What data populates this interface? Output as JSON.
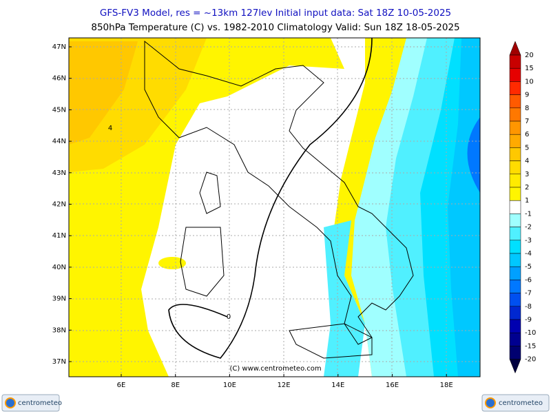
{
  "header": {
    "line1": "GFS-FV3 Model, res = ~13km 127lev    Initial input data: Sat 18Z 10-05-2025",
    "line2": "850hPa Temperature (C) vs. 1982-2010 Climatology  Valid: Sun 18Z 18-05-2025"
  },
  "map": {
    "lat_labels": [
      "47N",
      "46N",
      "45N",
      "44N",
      "43N",
      "42N",
      "41N",
      "40N",
      "39N",
      "38N",
      "37N"
    ],
    "lon_labels": [
      "6E",
      "8E",
      "10E",
      "12E",
      "14E",
      "16E",
      "18E"
    ],
    "contour_labels": [
      "4",
      "0"
    ],
    "copyright": "(C) www.centrometeo.com"
  },
  "colorbar": {
    "labels": [
      20,
      15,
      10,
      9,
      8,
      7,
      6,
      5,
      4,
      3,
      2,
      1,
      -1,
      -2,
      -3,
      -4,
      -5,
      -6,
      -7,
      -8,
      -9,
      -10,
      -15,
      -20
    ],
    "colors": [
      "#a00000",
      "#c80000",
      "#e60000",
      "#ff2a00",
      "#ff5a00",
      "#ff7800",
      "#ff9600",
      "#ffaa00",
      "#ffc800",
      "#ffdc00",
      "#ffeb00",
      "#fff500",
      "#ffffff",
      "#a0ffff",
      "#50f0ff",
      "#00e0ff",
      "#00c8ff",
      "#00a0ff",
      "#0078ff",
      "#0050f0",
      "#0028d0",
      "#0000b0",
      "#000090",
      "#000070",
      "#000040"
    ]
  },
  "logos": {
    "left": "centrometeo",
    "right": "centrometeo"
  }
}
